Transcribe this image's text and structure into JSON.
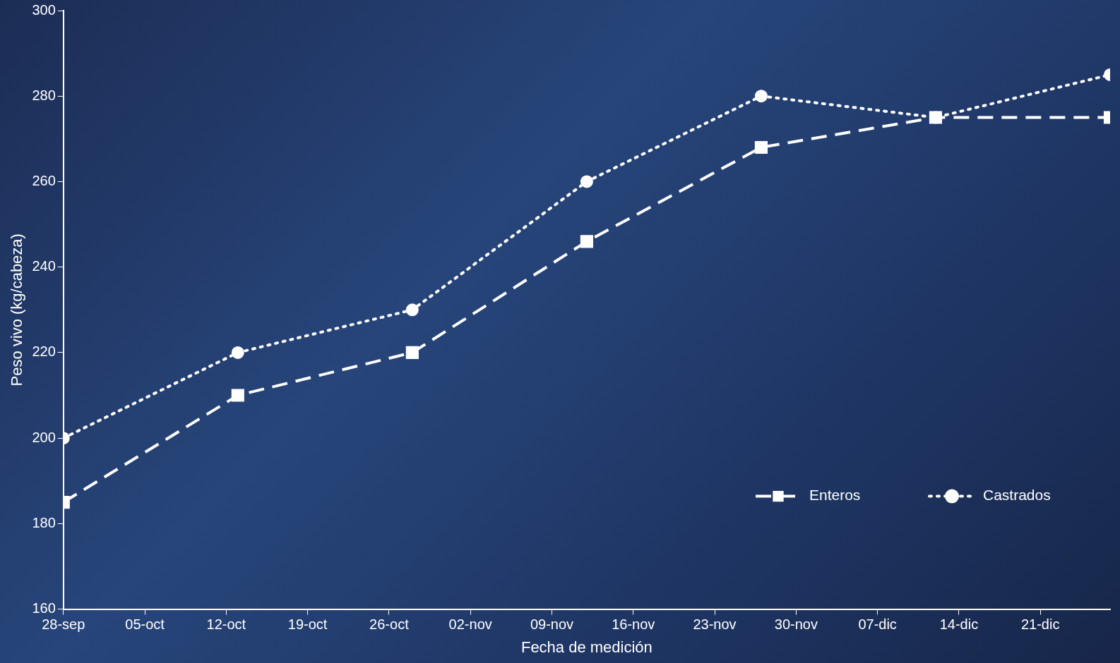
{
  "chart_data": {
    "type": "line",
    "xlabel": "Fecha de medición",
    "ylabel": "Peso vivo (kg/cabeza)",
    "x": [
      "--09-28",
      "--10-13",
      "--10-28",
      "--11-12",
      "--11-27",
      "--12-12",
      "--12-27"
    ],
    "series": [
      {
        "name": "Enteros",
        "color": "#ffffff",
        "line_style": "dashed",
        "marker": "square",
        "values": [
          185,
          210,
          220,
          246,
          268,
          275,
          275
        ]
      },
      {
        "name": "Castrados",
        "color": "#ffffff",
        "line_style": "dotted",
        "marker": "circle",
        "values": [
          200,
          220,
          230,
          260,
          280,
          275,
          285
        ]
      }
    ],
    "xlim": [
      "--09-28",
      "--12-27"
    ],
    "xticks": [
      {
        "value": "--09-28",
        "label": "28-sep"
      },
      {
        "value": "--10-05",
        "label": "05-oct"
      },
      {
        "value": "--10-12",
        "label": "12-oct"
      },
      {
        "value": "--10-19",
        "label": "19-oct"
      },
      {
        "value": "--10-26",
        "label": "26-oct"
      },
      {
        "value": "--11-02",
        "label": "02-nov"
      },
      {
        "value": "--11-09",
        "label": "09-nov"
      },
      {
        "value": "--11-16",
        "label": "16-nov"
      },
      {
        "value": "--11-23",
        "label": "23-nov"
      },
      {
        "value": "--11-30",
        "label": "30-nov"
      },
      {
        "value": "--12-07",
        "label": "07-dic"
      },
      {
        "value": "--12-14",
        "label": "14-dic"
      },
      {
        "value": "--12-21",
        "label": "21-dic"
      }
    ],
    "ylim": [
      160,
      300
    ],
    "yticks": [
      160,
      180,
      200,
      220,
      240,
      260,
      280,
      300
    ],
    "grid": false,
    "legend": "bottom right"
  }
}
